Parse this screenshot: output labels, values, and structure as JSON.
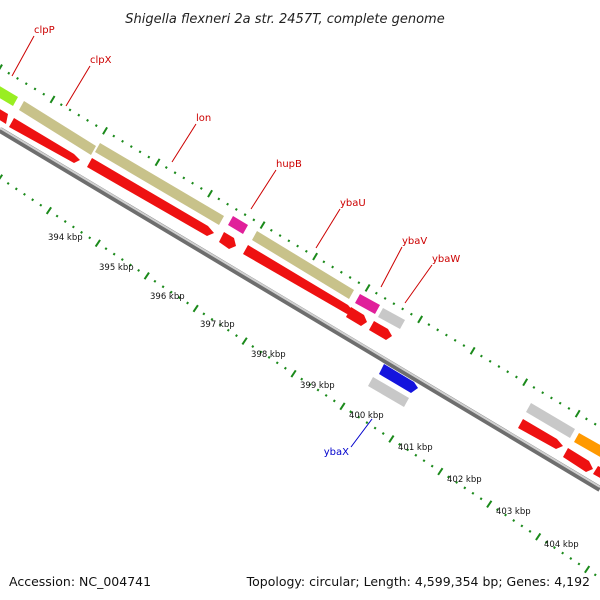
{
  "title": "Shigella flexneri 2a str. 2457T, complete genome",
  "footer": {
    "accession": "Accession: NC_004741",
    "topology": "Topology: circular; Length: 4,599,354 bp; Genes: 4,192"
  },
  "colors": {
    "backbone": "#8c8c8c",
    "tick": "#1b8a1b",
    "label_forward": "#cc0000",
    "label_reverse": "#0000cc",
    "khaki": "#c8c28a",
    "red": "#ee1111",
    "magenta": "#e0209a",
    "grey": "#c8c8c8",
    "blue": "#1414dd",
    "green": "#99ee22",
    "orange": "#ff9900"
  },
  "gene_labels": [
    {
      "name": "clpP",
      "color": "label_forward"
    },
    {
      "name": "clpX",
      "color": "label_forward"
    },
    {
      "name": "lon",
      "color": "label_forward"
    },
    {
      "name": "hupB",
      "color": "label_forward"
    },
    {
      "name": "ybaU",
      "color": "label_forward"
    },
    {
      "name": "ybaV",
      "color": "label_forward"
    },
    {
      "name": "ybaW",
      "color": "label_forward"
    },
    {
      "name": "ybaX",
      "color": "label_reverse"
    }
  ],
  "kbp_labels": [
    "394 kbp",
    "395 kbp",
    "396 kbp",
    "397 kbp",
    "398 kbp",
    "399 kbp",
    "400 kbp",
    "401 kbp",
    "402 kbp",
    "403 kbp",
    "404 kbp"
  ]
}
